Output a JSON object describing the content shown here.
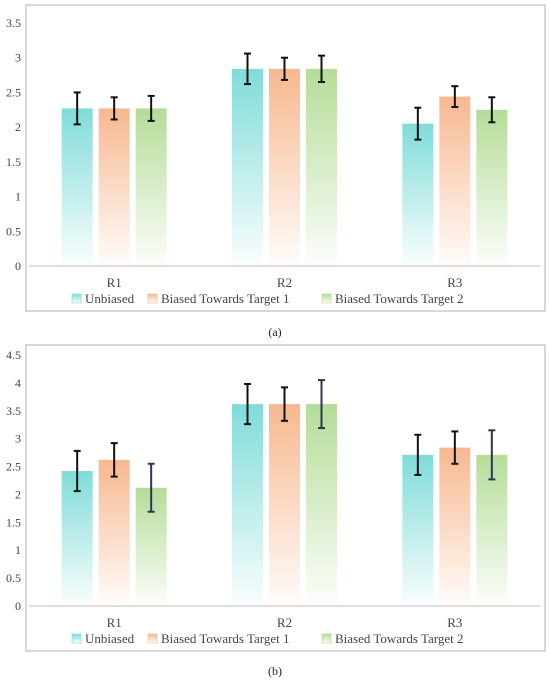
{
  "colors": {
    "Unbiased": "#7fdcd8",
    "Biased Towards Target 1": "#f7b88f",
    "Biased Towards Target 2": "#b5dc98",
    "error_a": "#111111",
    "error_b_dark": "#111111",
    "error_b_navy": "#2c3556",
    "frame": "#b0b0b0",
    "axis_text": "#444444"
  },
  "chart_data": [
    {
      "type": "bar",
      "panel": "a",
      "caption": "(a)",
      "categories": [
        "R1",
        "R2",
        "R3"
      ],
      "ylim": [
        0,
        3.5
      ],
      "yticks": [
        "0",
        "0.5",
        "1",
        "1.5",
        "2",
        "2.5",
        "3",
        "3.5"
      ],
      "legend_position": "bottom",
      "series": [
        {
          "name": "Unbiased",
          "values": [
            2.27,
            2.84,
            2.05
          ],
          "errors": [
            0.23,
            0.22,
            0.23
          ]
        },
        {
          "name": "Biased Towards Target 1",
          "values": [
            2.27,
            2.84,
            2.44
          ],
          "errors": [
            0.16,
            0.16,
            0.15
          ]
        },
        {
          "name": "Biased Towards Target 2",
          "values": [
            2.27,
            2.84,
            2.25
          ],
          "errors": [
            0.18,
            0.19,
            0.18
          ]
        }
      ]
    },
    {
      "type": "bar",
      "panel": "b",
      "caption": "(b)",
      "categories": [
        "R1",
        "R2",
        "R3"
      ],
      "ylim": [
        0,
        4.5
      ],
      "yticks": [
        "0",
        "0.5",
        "1",
        "1.5",
        "2",
        "2.5",
        "3",
        "3.5",
        "4",
        "4.5"
      ],
      "legend_position": "bottom",
      "series": [
        {
          "name": "Unbiased",
          "values": [
            2.42,
            3.62,
            2.71
          ],
          "errors": [
            0.36,
            0.36,
            0.36
          ]
        },
        {
          "name": "Biased Towards Target 1",
          "values": [
            2.62,
            3.62,
            2.84
          ],
          "errors": [
            0.3,
            0.3,
            0.29
          ]
        },
        {
          "name": "Biased Towards Target 2",
          "values": [
            2.12,
            3.62,
            2.71
          ],
          "errors": [
            0.43,
            0.43,
            0.44
          ]
        }
      ]
    }
  ]
}
